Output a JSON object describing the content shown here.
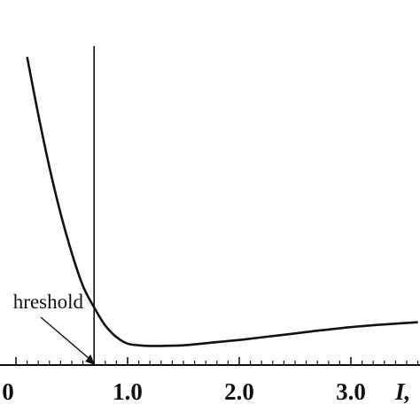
{
  "chart_data": {
    "type": "line",
    "title": "",
    "xlabel": "I,",
    "ylabel": "",
    "x_tick_labels": [
      "0",
      "1.0",
      "2.0",
      "3.0"
    ],
    "x_ticks": [
      0,
      1.0,
      2.0,
      3.0
    ],
    "xlim": [
      0,
      3.65
    ],
    "ylim": [
      0,
      1
    ],
    "grid": false,
    "legend": "none",
    "threshold": {
      "x": 0.7,
      "label": "hreshold"
    },
    "series": [
      {
        "x": [
          0.1,
          0.2,
          0.3,
          0.4,
          0.5,
          0.6,
          0.7,
          0.8,
          0.9,
          1.0,
          1.1,
          1.2,
          1.3,
          1.5,
          1.75,
          2.0,
          2.25,
          2.5,
          2.75,
          3.0,
          3.25,
          3.5,
          3.6
        ],
        "y": [
          0.935,
          0.76,
          0.6,
          0.46,
          0.34,
          0.24,
          0.175,
          0.12,
          0.085,
          0.065,
          0.06,
          0.058,
          0.058,
          0.06,
          0.068,
          0.076,
          0.086,
          0.096,
          0.106,
          0.115,
          0.122,
          0.128,
          0.13
        ]
      }
    ],
    "colors": {
      "curve": "#111111",
      "axis": "#111111"
    }
  }
}
